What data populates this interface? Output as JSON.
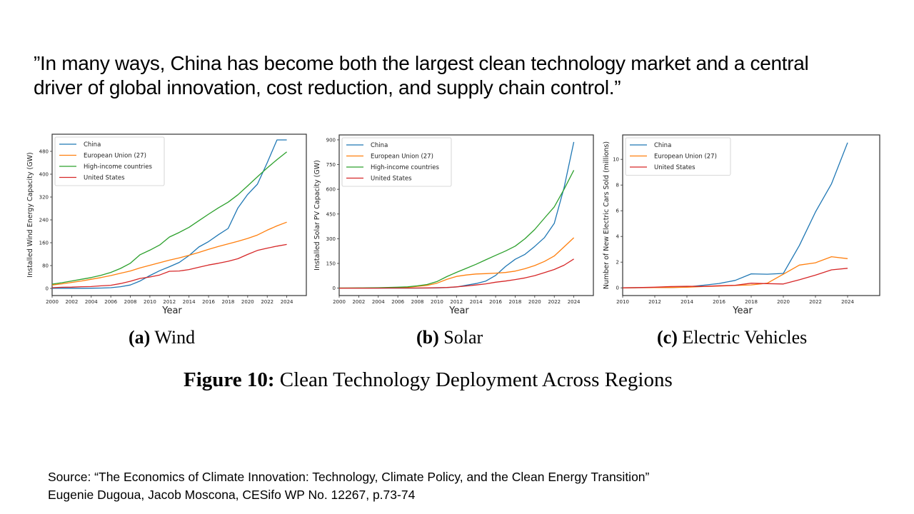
{
  "quote": {
    "line1": "”In many ways, China has become both the largest clean technology market and a central",
    "line2": "driver of global innovation, cost reduction, and supply chain control.”"
  },
  "captions": {
    "a_label": "(a)",
    "a_text": "Wind",
    "b_label": "(b)",
    "b_text": "Solar",
    "c_label": "(c)",
    "c_text": "Electric Vehicles"
  },
  "figure_title": {
    "label": "Figure 10:",
    "text": "Clean Technology Deployment Across Regions"
  },
  "source": {
    "line1": "Source: “The Economics of Climate Innovation: Technology, Climate Policy, and the Clean Energy Transition”",
    "line2": "Eugenie Dugoua, Jacob Moscona, CESifo WP No. 12267, p.73-74"
  },
  "colors": {
    "China": "#1f77b4",
    "European Union (27)": "#ff7f0e",
    "High-income countries": "#2ca02c",
    "United States": "#d62728"
  },
  "chart_data": [
    {
      "id": "wind",
      "type": "line",
      "title": "(a) Wind",
      "xlabel": "Year",
      "ylabel": "Installed Wind Energy Capacity (GW)",
      "xlim": [
        2000,
        2026
      ],
      "ylim": [
        -25,
        540
      ],
      "xticks": [
        2000,
        2002,
        2004,
        2006,
        2008,
        2010,
        2012,
        2014,
        2016,
        2018,
        2020,
        2022,
        2024
      ],
      "yticks": [
        0,
        80,
        160,
        240,
        320,
        400,
        480
      ],
      "grid": false,
      "legend": "top-left",
      "x": [
        2000,
        2001,
        2002,
        2003,
        2004,
        2005,
        2006,
        2007,
        2008,
        2009,
        2010,
        2011,
        2012,
        2013,
        2014,
        2015,
        2016,
        2017,
        2018,
        2019,
        2020,
        2021,
        2022,
        2023,
        2024
      ],
      "series": [
        {
          "name": "China",
          "values": [
            0.3,
            0.4,
            0.5,
            0.6,
            0.8,
            1.3,
            2.6,
            6,
            12,
            26,
            45,
            62,
            76,
            91,
            115,
            145,
            164,
            188,
            210,
            282,
            329,
            365,
            440,
            520,
            520
          ]
        },
        {
          "name": "European Union (27)",
          "values": [
            12,
            16,
            21,
            26,
            32,
            38,
            45,
            53,
            61,
            72,
            81,
            90,
            99,
            107,
            116,
            126,
            137,
            147,
            156,
            165,
            175,
            187,
            204,
            219,
            232
          ]
        },
        {
          "name": "High-income countries",
          "values": [
            15,
            20,
            26,
            32,
            38,
            46,
            56,
            70,
            88,
            118,
            134,
            152,
            180,
            196,
            214,
            237,
            260,
            282,
            302,
            328,
            359,
            391,
            422,
            451,
            478
          ]
        },
        {
          "name": "United States",
          "values": [
            2.5,
            4,
            4.5,
            6,
            6.5,
            9,
            11,
            17,
            25,
            35,
            40,
            47,
            60,
            61,
            66,
            74,
            82,
            88,
            95,
            104,
            119,
            133,
            141,
            148,
            154
          ]
        }
      ]
    },
    {
      "id": "solar",
      "type": "line",
      "title": "(b) Solar",
      "xlabel": "Year",
      "ylabel": "Installed Solar PV Capacity (GW)",
      "xlim": [
        2000,
        2026
      ],
      "ylim": [
        -45,
        930
      ],
      "xticks": [
        2000,
        2002,
        2004,
        2006,
        2008,
        2010,
        2012,
        2014,
        2016,
        2018,
        2020,
        2022,
        2024
      ],
      "yticks": [
        0,
        150,
        300,
        450,
        600,
        750,
        900
      ],
      "grid": false,
      "legend": "top-left",
      "x": [
        2000,
        2001,
        2002,
        2003,
        2004,
        2005,
        2006,
        2007,
        2008,
        2009,
        2010,
        2011,
        2012,
        2013,
        2014,
        2015,
        2016,
        2017,
        2018,
        2019,
        2020,
        2021,
        2022,
        2023,
        2024
      ],
      "series": [
        {
          "name": "China",
          "values": [
            0.02,
            0.03,
            0.05,
            0.06,
            0.07,
            0.07,
            0.08,
            0.1,
            0.14,
            0.3,
            1,
            3,
            7,
            18,
            28,
            43,
            77,
            131,
            175,
            205,
            253,
            307,
            393,
            609,
            887
          ]
        },
        {
          "name": "European Union (27)",
          "values": [
            0.2,
            0.3,
            0.4,
            0.6,
            1,
            2,
            3,
            5,
            11,
            17,
            30,
            53,
            71,
            80,
            86,
            88,
            91,
            95,
            103,
            118,
            137,
            162,
            195,
            250,
            306
          ]
        },
        {
          "name": "High-income countries",
          "values": [
            0.8,
            1,
            1.3,
            1.8,
            2.5,
            4,
            5.5,
            8,
            14,
            22,
            40,
            70,
            96,
            120,
            145,
            172,
            199,
            225,
            255,
            300,
            356,
            425,
            493,
            600,
            716
          ]
        },
        {
          "name": "United States",
          "values": [
            0.1,
            0.1,
            0.1,
            0.2,
            0.2,
            0.3,
            0.4,
            0.5,
            0.8,
            1.3,
            2.5,
            4,
            8,
            13,
            19,
            26,
            36,
            43,
            52,
            62,
            76,
            94,
            113,
            139,
            177
          ]
        }
      ]
    },
    {
      "id": "ev",
      "type": "line",
      "title": "(c) Electric Vehicles",
      "xlabel": "Year",
      "ylabel": "Number of New Electric Cars Sold (millions)",
      "xlim": [
        2010,
        2026
      ],
      "ylim": [
        -0.6,
        11.9
      ],
      "xticks": [
        2010,
        2012,
        2014,
        2016,
        2018,
        2020,
        2022,
        2024
      ],
      "yticks": [
        0,
        2,
        4,
        6,
        8,
        10
      ],
      "grid": false,
      "legend": "top-left",
      "x": [
        2010,
        2011,
        2012,
        2013,
        2014,
        2015,
        2016,
        2017,
        2018,
        2019,
        2020,
        2021,
        2022,
        2023,
        2024
      ],
      "series": [
        {
          "name": "China",
          "values": [
            0.0,
            0.01,
            0.02,
            0.02,
            0.07,
            0.2,
            0.34,
            0.58,
            1.09,
            1.06,
            1.12,
            3.3,
            5.9,
            8.1,
            11.3
          ]
        },
        {
          "name": "European Union (27)",
          "values": [
            0.0,
            0.01,
            0.02,
            0.03,
            0.05,
            0.1,
            0.14,
            0.19,
            0.23,
            0.36,
            1.06,
            1.77,
            1.95,
            2.42,
            2.27
          ]
        },
        {
          "name": "United States",
          "values": [
            0.0,
            0.02,
            0.05,
            0.1,
            0.12,
            0.11,
            0.16,
            0.2,
            0.36,
            0.33,
            0.3,
            0.63,
            0.99,
            1.4,
            1.52
          ]
        }
      ]
    }
  ]
}
